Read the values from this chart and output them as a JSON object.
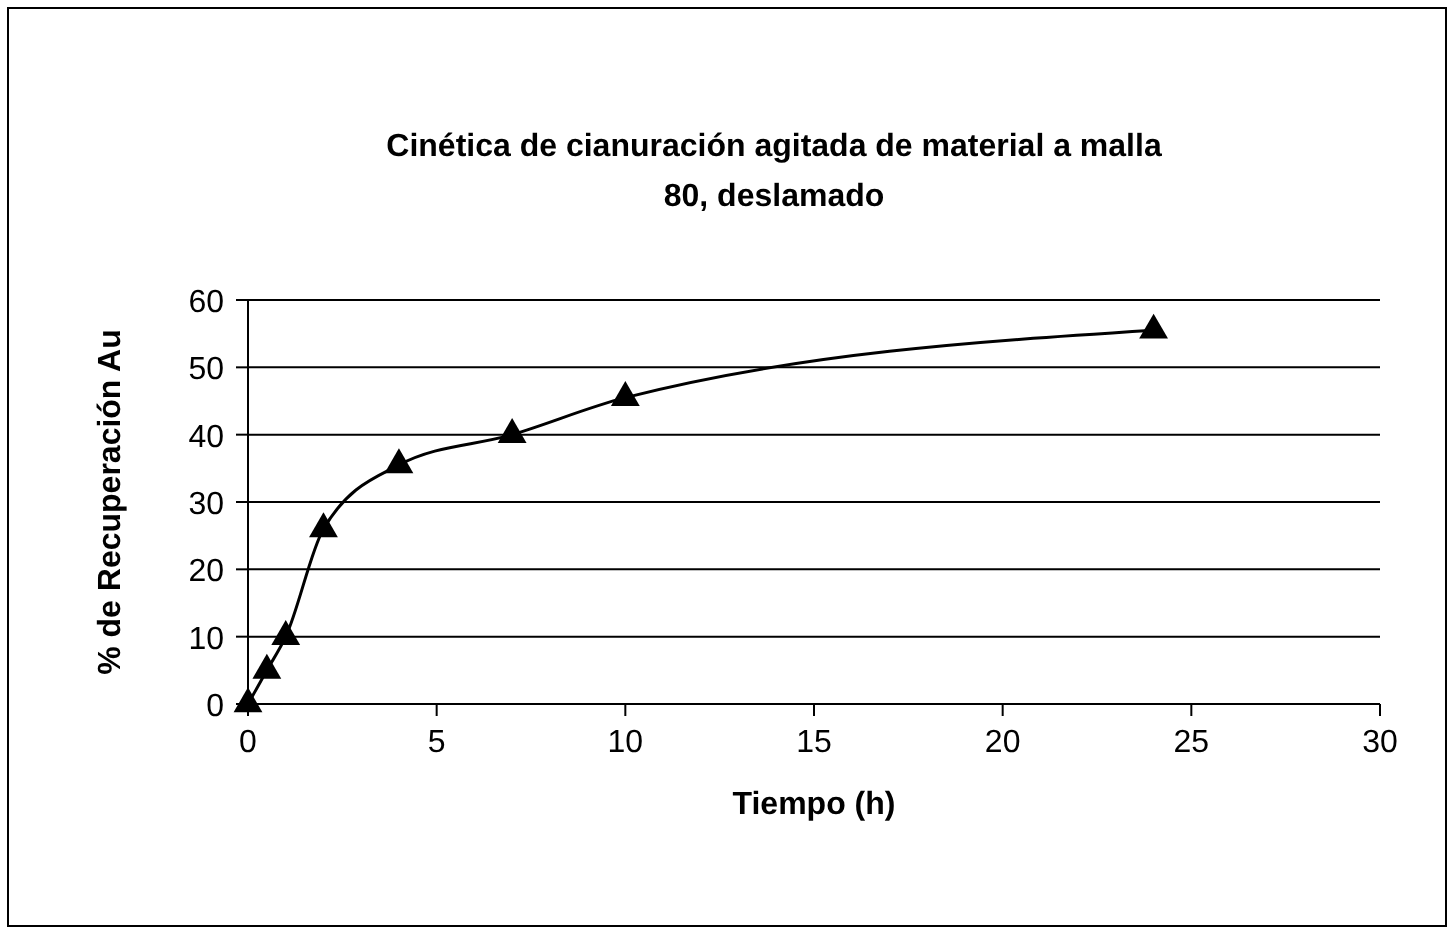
{
  "chart_data": {
    "type": "line",
    "title": "Cinética de cianuración agitada de material a malla\n80, deslamado",
    "xlabel": "Tiempo (h)",
    "ylabel": "% de Recuperación Au",
    "x": [
      0,
      0.5,
      1,
      2,
      4,
      7,
      10,
      24
    ],
    "series": [
      {
        "color": "#000000",
        "values": [
          0,
          5,
          10,
          26,
          35.5,
          40,
          45.5,
          55.5
        ]
      }
    ],
    "xlim": [
      0,
      30
    ],
    "xticks": [
      0,
      5,
      10,
      15,
      20,
      25,
      30
    ],
    "ylim": [
      0,
      60
    ],
    "yticks": [
      0,
      10,
      20,
      30,
      40,
      50,
      60
    ],
    "grid": "y",
    "marker": "triangle",
    "line_style": "solid"
  }
}
